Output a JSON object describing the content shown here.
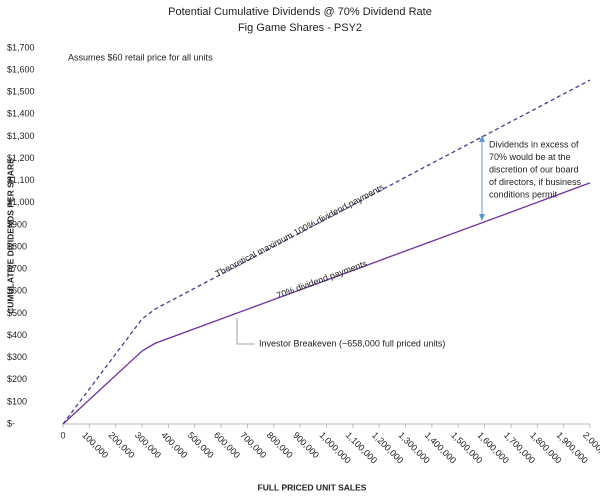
{
  "chart_data": {
    "type": "line",
    "title": "Potential Cumulative Dividends @ 70% Dividend Rate",
    "subtitle": "Fig Game Shares - PSY2",
    "x_label": "FULL PRICED UNIT SALES",
    "y_label": "CUMULATIVE DIVIDENDS PER SHARE",
    "x": [
      0,
      300000,
      350000,
      2000000
    ],
    "series": [
      {
        "name": "70% dividend payments",
        "color": "#7030a0",
        "dashed": false,
        "values": [
          0,
          330,
          365,
          1090
        ]
      },
      {
        "name": "Theoretical maximum 100% dividend payments",
        "color": "#3f3f8f",
        "dashed": true,
        "values": [
          0,
          475,
          520,
          1555
        ]
      }
    ],
    "xlim": [
      0,
      2000000
    ],
    "ylim": [
      0,
      1700
    ],
    "xticks": [
      0,
      {
        "value": 100000,
        "label": "100,000"
      },
      {
        "value": 200000,
        "label": "200,000"
      },
      {
        "value": 300000,
        "label": "300,000"
      },
      {
        "value": 400000,
        "label": "400,000"
      },
      {
        "value": 500000,
        "label": "500,000"
      },
      {
        "value": 600000,
        "label": "600,000"
      },
      {
        "value": 700000,
        "label": "700,000"
      },
      {
        "value": 800000,
        "label": "800,000"
      },
      {
        "value": 900000,
        "label": "900,000"
      },
      {
        "value": 1000000,
        "label": "1,000,000"
      },
      {
        "value": 1100000,
        "label": "1,100,000"
      },
      {
        "value": 1200000,
        "label": "1,200,000"
      },
      {
        "value": 1300000,
        "label": "1,300,000"
      },
      {
        "value": 1400000,
        "label": "1,400,000"
      },
      {
        "value": 1500000,
        "label": "1,500,000"
      },
      {
        "value": 1600000,
        "label": "1,600,000"
      },
      {
        "value": 1700000,
        "label": "1,700,000"
      },
      {
        "value": 1800000,
        "label": "1,800,000"
      },
      {
        "value": 1900000,
        "label": "1,900,000"
      },
      {
        "value": 2000000,
        "label": "2,000,000"
      }
    ],
    "yticks": [
      {
        "value": 0,
        "label": "$-"
      },
      {
        "value": 100,
        "label": "$100"
      },
      {
        "value": 200,
        "label": "$200"
      },
      {
        "value": 300,
        "label": "$300"
      },
      {
        "value": 400,
        "label": "$400"
      },
      {
        "value": 500,
        "label": "$500"
      },
      {
        "value": 600,
        "label": "$600"
      },
      {
        "value": 700,
        "label": "$700"
      },
      {
        "value": 800,
        "label": "$800"
      },
      {
        "value": 900,
        "label": "$900"
      },
      {
        "value": 1000,
        "label": "$1,000"
      },
      {
        "value": 1100,
        "label": "$1,100"
      },
      {
        "value": 1200,
        "label": "$1,200"
      },
      {
        "value": 1300,
        "label": "$1,300"
      },
      {
        "value": 1400,
        "label": "$1,400"
      },
      {
        "value": 1500,
        "label": "$1,500"
      },
      {
        "value": 1600,
        "label": "$1,600"
      },
      {
        "value": 1700,
        "label": "$1,700"
      }
    ],
    "grid": false,
    "annotations": [
      {
        "lines": [
          "Assumes $60 retail price for all units"
        ]
      },
      {
        "lines": [
          "Investor Breakeven (~658,000 full priced units)"
        ]
      },
      {
        "lines": [
          "Dividends in excess of",
          "70% would be at the",
          "discretion of our board",
          "of directors, if business",
          "conditions permit"
        ]
      }
    ]
  }
}
